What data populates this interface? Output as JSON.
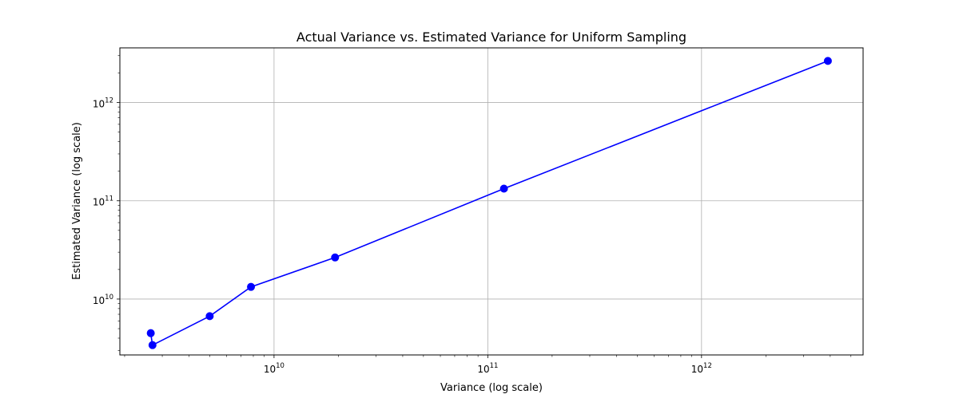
{
  "chart_data": {
    "type": "line",
    "title": "Actual Variance vs. Estimated Variance for Uniform Sampling",
    "xlabel": "Variance (log scale)",
    "ylabel": "Estimated Variance (log scale)",
    "xscale": "log",
    "yscale": "log",
    "xlim": [
      1900000000.0,
      5700000000000.0
    ],
    "ylim": [
      2700000000.0,
      3600000000000.0
    ],
    "grid": true,
    "x_ticks": [
      {
        "base": "10",
        "exp": "10",
        "value": 10000000000.0
      },
      {
        "base": "10",
        "exp": "11",
        "value": 100000000000.0
      },
      {
        "base": "10",
        "exp": "12",
        "value": 1000000000000.0
      }
    ],
    "y_ticks": [
      {
        "base": "10",
        "exp": "10",
        "value": 10000000000.0
      },
      {
        "base": "10",
        "exp": "11",
        "value": 100000000000.0
      },
      {
        "base": "10",
        "exp": "12",
        "value": 1000000000000.0
      }
    ],
    "series": [
      {
        "color": "#0000ff",
        "marker": "circle",
        "x": [
          2650000000.0,
          2700000000.0,
          5000000000.0,
          7800000000.0,
          19300000000.0,
          119000000000.0,
          3900000000000.0
        ],
        "y": [
          4500000000.0,
          3400000000.0,
          6700000000.0,
          13300000000.0,
          26500000000.0,
          133000000000.0,
          2650000000000.0
        ]
      }
    ]
  }
}
